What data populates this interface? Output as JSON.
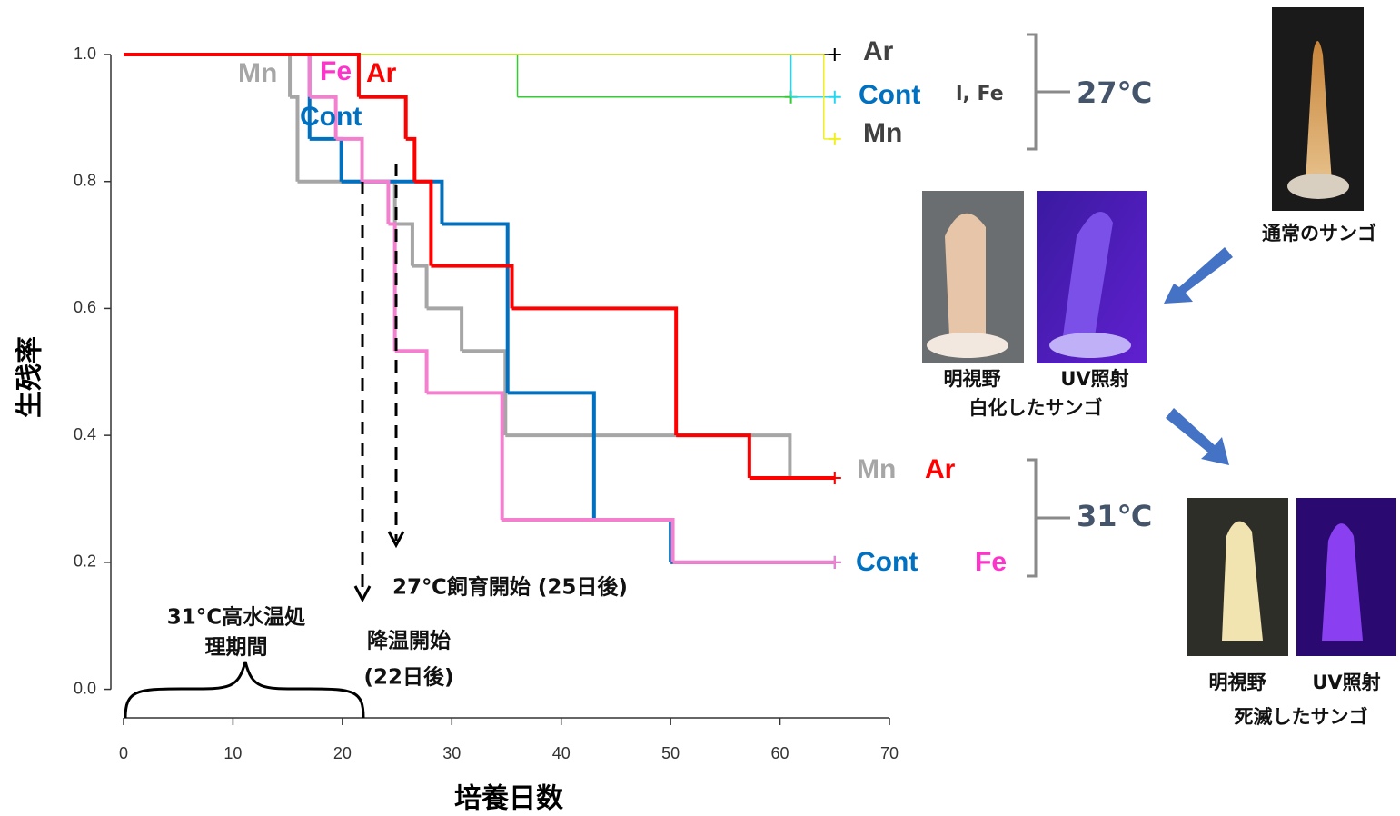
{
  "chart_data": {
    "type": "step",
    "xlabel": "培養日数",
    "ylabel": "生残率",
    "xlim": [
      0,
      70
    ],
    "ylim": [
      -0.045,
      1.0
    ],
    "xticks": [
      0,
      10,
      20,
      30,
      40,
      50,
      60,
      70
    ],
    "yticks": [
      {
        "value": 0,
        "label": "0.0"
      },
      {
        "value": 0.2,
        "label": "0.2"
      },
      {
        "value": 0.4,
        "label": "0.4"
      },
      {
        "value": 0.6,
        "label": "0.6"
      },
      {
        "value": 0.8,
        "label": "0.8"
      },
      {
        "value": 1,
        "label": "1.0"
      }
    ],
    "series": [
      {
        "name": "Ar",
        "color": "#000000",
        "width": 1.5,
        "x": [
          0,
          65
        ],
        "values": [
          1.0,
          1.0
        ]
      },
      {
        "name": "Fe",
        "color": "#33cc33",
        "width": 1.5,
        "x": [
          0,
          36,
          61
        ],
        "values": [
          1.0,
          0.933,
          0.933
        ]
      },
      {
        "name": "Cont",
        "color": "#22d8f0",
        "width": 1.5,
        "x": [
          0,
          61,
          65
        ],
        "values": [
          1.0,
          0.933,
          0.933
        ]
      },
      {
        "name": "Mn",
        "color": "#f0f020",
        "width": 1.5,
        "x": [
          0,
          64,
          65
        ],
        "values": [
          1.0,
          0.867,
          0.867
        ]
      },
      {
        "name": "Mn",
        "color": "#a6a6a6",
        "width": 4,
        "x": [
          0,
          15.2,
          15.9,
          24.8,
          26.4,
          27.7,
          30.9,
          34.9,
          60.9,
          65
        ],
        "values": [
          1.0,
          0.933,
          0.8,
          0.733,
          0.667,
          0.6,
          0.533,
          0.4,
          0.333,
          0.333
        ]
      },
      {
        "name": "Cont",
        "color": "#0070c0",
        "width": 4,
        "x": [
          0,
          17,
          19.9,
          29.1,
          35.1,
          43,
          50,
          65
        ],
        "values": [
          1.0,
          0.867,
          0.8,
          0.733,
          0.467,
          0.267,
          0.2,
          0.2
        ]
      },
      {
        "name": "Fe",
        "color": "#f47fcf",
        "width": 4,
        "x": [
          0,
          17,
          19.4,
          21.8,
          24.2,
          24.8,
          27.7,
          34.6,
          50.2,
          65
        ],
        "values": [
          1.0,
          0.933,
          0.867,
          0.8,
          0.733,
          0.533,
          0.467,
          0.267,
          0.2,
          0.2
        ]
      },
      {
        "name": "Ar",
        "color": "#ff0000",
        "width": 4,
        "x": [
          0,
          21.5,
          25.8,
          26.6,
          28.1,
          35.5,
          50.5,
          57.2,
          65
        ],
        "values": [
          1.0,
          0.933,
          0.867,
          0.8,
          0.667,
          0.6,
          0.4,
          0.333,
          0.333
        ]
      }
    ],
    "labels_27": [
      "Ar",
      "Cont",
      "l, Fe",
      "Mn"
    ],
    "group_27": "27℃",
    "labels_31": [
      "Mn",
      "Ar",
      "Cont",
      "Fe"
    ],
    "group_31": "31℃",
    "annotations": {
      "start27": "27℃飼育開始 (25日後)",
      "cool": "降温開始",
      "cool_day": "(22日後)",
      "period1": "31°C高水温処",
      "period2": "理期間"
    }
  },
  "photos": {
    "normal": "通常のサンゴ",
    "bright1": "明視野",
    "uv1": "UV照射",
    "bleached": "白化したサンゴ",
    "bright2": "明視野",
    "uv2": "UV照射",
    "dead": "死滅したサンゴ"
  }
}
